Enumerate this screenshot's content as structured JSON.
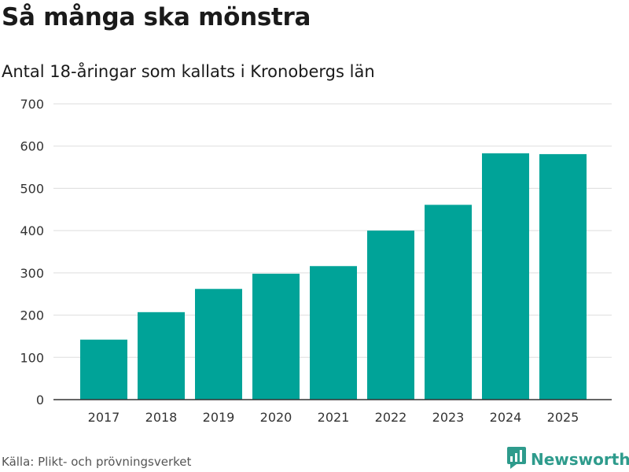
{
  "header": {
    "title": "Så många ska mönstra",
    "subtitle": "Antal 18-åringar som kallats i Kronobergs län"
  },
  "footer": {
    "source": "Källa: Plikt- och prövningsverket",
    "brand_name": "Newsworthy",
    "brand_icon": "newsworthy-logo-icon"
  },
  "colors": {
    "bar": "#00a398",
    "grid": "#dddddd",
    "axis": "#333333",
    "brand": "#2e9b8c"
  },
  "chart_data": {
    "type": "bar",
    "title": "Så många ska mönstra",
    "subtitle": "Antal 18-åringar som kallats i Kronobergs län",
    "xlabel": "",
    "ylabel": "",
    "categories": [
      "2017",
      "2018",
      "2019",
      "2020",
      "2021",
      "2022",
      "2023",
      "2024",
      "2025"
    ],
    "values": [
      142,
      207,
      262,
      298,
      316,
      400,
      461,
      583,
      581
    ],
    "ylim": [
      0,
      700
    ],
    "yticks": [
      0,
      100,
      200,
      300,
      400,
      500,
      600,
      700
    ],
    "grid": true,
    "legend": "none"
  }
}
